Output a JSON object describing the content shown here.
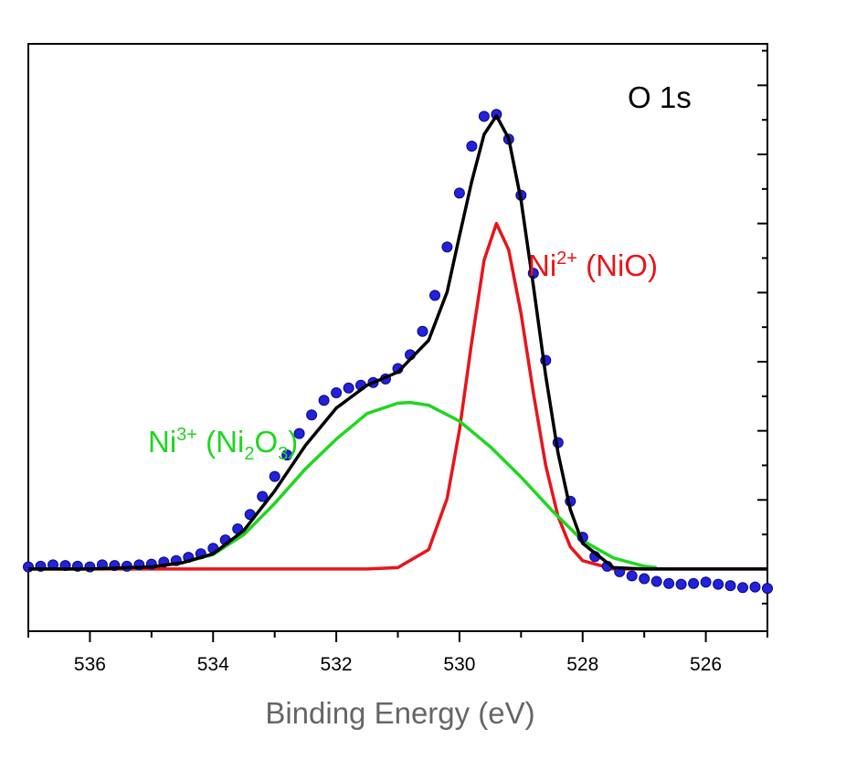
{
  "chart_data": {
    "type": "line",
    "xlabel": "Binding Energy (eV)",
    "ylabel": "",
    "xlim": [
      537,
      525
    ],
    "ylim": [
      -0.09,
      0.76
    ],
    "x_ticks": [
      536,
      534,
      532,
      530,
      528,
      526
    ],
    "x_tick_labels": [
      "536",
      "534",
      "532",
      "530",
      "528",
      "526"
    ],
    "y_tick_labels_shown": false,
    "panel_label": "O 1s",
    "annotations": [
      {
        "id": "ni2",
        "base": "Ni",
        "sup": "2+",
        "rest": " (NiO)",
        "color": "#e8141a"
      },
      {
        "id": "ni3",
        "base": "Ni",
        "sup": "3+",
        "mid": " (Ni",
        "sub1": "2",
        "mid2": "O",
        "sub2": "3",
        "end": ")",
        "color": "#1fd61f"
      }
    ],
    "series": [
      {
        "name": "",
        "kind": "data",
        "color": "#2222dd",
        "x": [
          537.0,
          536.8,
          536.6,
          536.4,
          536.2,
          536.0,
          535.8,
          535.6,
          535.4,
          535.2,
          535.0,
          534.8,
          534.6,
          534.4,
          534.2,
          534.0,
          533.8,
          533.6,
          533.4,
          533.2,
          533.0,
          532.8,
          532.6,
          532.4,
          532.2,
          532.0,
          531.8,
          531.6,
          531.4,
          531.2,
          531.0,
          530.8,
          530.6,
          530.4,
          530.2,
          530.0,
          529.8,
          529.6,
          529.4,
          529.2,
          529.0,
          528.8,
          528.6,
          528.4,
          528.2,
          528.0,
          527.8,
          527.6,
          527.4,
          527.2,
          527.0,
          526.8,
          526.6,
          526.4,
          526.2,
          526.0,
          525.8,
          525.6,
          525.4,
          525.2,
          525.0
        ],
        "y": [
          0.003,
          0.004,
          0.006,
          0.005,
          0.004,
          0.003,
          0.006,
          0.005,
          0.004,
          0.006,
          0.007,
          0.01,
          0.012,
          0.017,
          0.022,
          0.03,
          0.042,
          0.058,
          0.079,
          0.105,
          0.134,
          0.165,
          0.196,
          0.223,
          0.244,
          0.255,
          0.262,
          0.266,
          0.27,
          0.275,
          0.29,
          0.31,
          0.344,
          0.396,
          0.466,
          0.544,
          0.612,
          0.655,
          0.658,
          0.622,
          0.541,
          0.428,
          0.302,
          0.183,
          0.098,
          0.046,
          0.018,
          0.004,
          -0.004,
          -0.01,
          -0.014,
          -0.018,
          -0.021,
          -0.022,
          -0.021,
          -0.019,
          -0.022,
          -0.024,
          -0.027,
          -0.026,
          -0.028
        ]
      },
      {
        "name": "",
        "kind": "envelope",
        "color": "#000000",
        "x": [
          537.0,
          536.0,
          535.0,
          534.5,
          534.0,
          533.5,
          533.0,
          532.5,
          532.0,
          531.5,
          531.0,
          530.5,
          530.2,
          530.0,
          529.8,
          529.6,
          529.4,
          529.2,
          529.0,
          528.8,
          528.6,
          528.4,
          528.2,
          528.0,
          527.5,
          527.0,
          526.0,
          525.0
        ],
        "y": [
          0.0,
          0.0,
          0.003,
          0.009,
          0.022,
          0.056,
          0.113,
          0.179,
          0.233,
          0.266,
          0.285,
          0.331,
          0.401,
          0.482,
          0.561,
          0.629,
          0.656,
          0.623,
          0.534,
          0.41,
          0.28,
          0.168,
          0.086,
          0.037,
          0.002,
          0.0,
          0.0,
          0.0
        ]
      },
      {
        "name": "",
        "kind": "component",
        "label_ref": "ni2",
        "color": "#e8141a",
        "x": [
          537.0,
          531.5,
          531.0,
          530.5,
          530.2,
          530.0,
          529.8,
          529.6,
          529.4,
          529.2,
          529.0,
          528.8,
          528.6,
          528.4,
          528.2,
          528.0,
          527.5,
          527.0,
          525.0
        ],
        "y": [
          0.0,
          0.0,
          0.002,
          0.028,
          0.102,
          0.201,
          0.329,
          0.447,
          0.5,
          0.462,
          0.37,
          0.255,
          0.15,
          0.076,
          0.032,
          0.012,
          0.0,
          0.0,
          0.0
        ]
      },
      {
        "name": "",
        "kind": "component",
        "label_ref": "ni3",
        "color": "#1fd61f",
        "x": [
          535.0,
          534.5,
          534.0,
          533.5,
          533.0,
          532.5,
          532.0,
          531.5,
          531.0,
          530.8,
          530.5,
          530.0,
          529.5,
          529.0,
          528.5,
          528.0,
          527.5,
          527.0,
          526.8
        ],
        "y": [
          0.003,
          0.009,
          0.021,
          0.05,
          0.095,
          0.145,
          0.188,
          0.225,
          0.24,
          0.241,
          0.237,
          0.214,
          0.177,
          0.133,
          0.085,
          0.041,
          0.016,
          0.004,
          0.002
        ]
      }
    ]
  }
}
